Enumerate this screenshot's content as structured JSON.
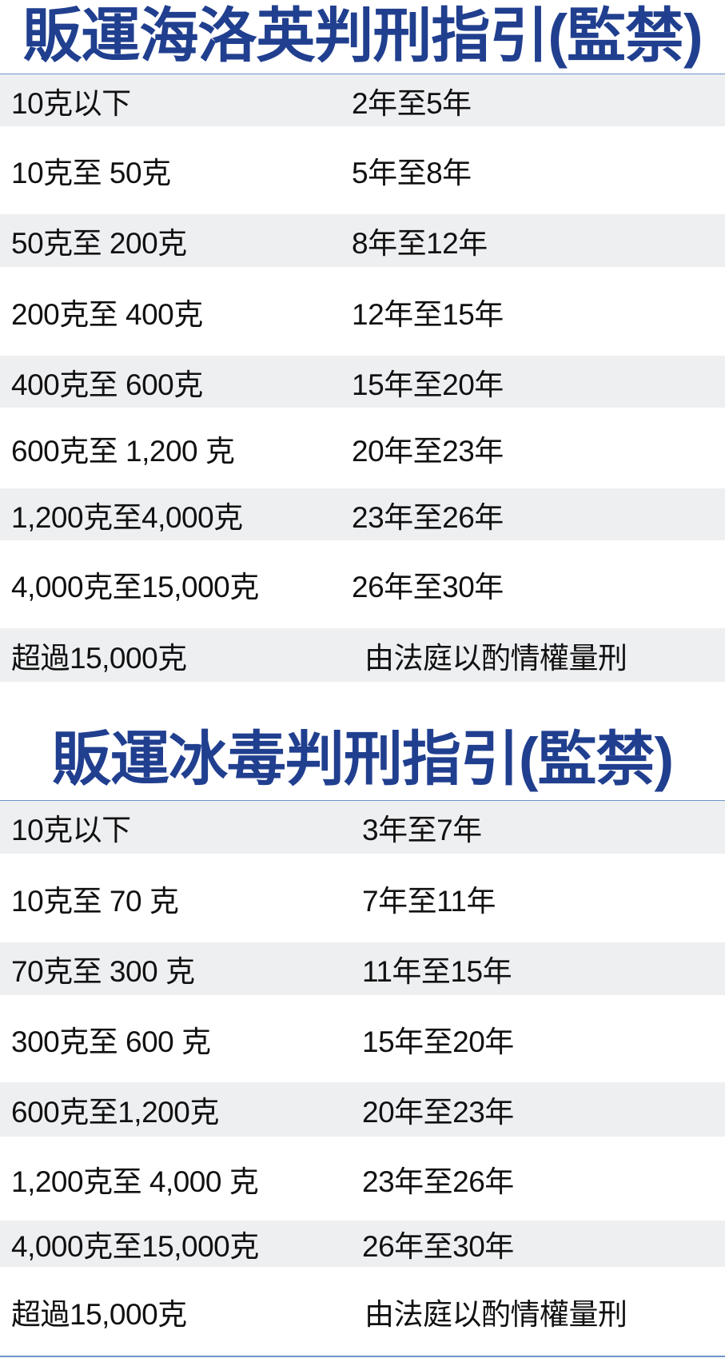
{
  "colors": {
    "title": "#213f8f",
    "rule": "#6f93c8",
    "stripe": "#eeeff1"
  },
  "tables": [
    {
      "title": "販運海洛英判刑指引(監禁)",
      "rows": [
        {
          "quantity": "10克以下",
          "sentence": "2年至5年"
        },
        {
          "quantity": "10克至 50克",
          "sentence": "5年至8年"
        },
        {
          "quantity": "50克至 200克",
          "sentence": "8年至12年"
        },
        {
          "quantity": "200克至 400克",
          "sentence": "12年至15年"
        },
        {
          "quantity": "400克至 600克",
          "sentence": "15年至20年"
        },
        {
          "quantity": "600克至 1,200 克",
          "sentence": "20年至23年"
        },
        {
          "quantity": "1,200克至4,000克",
          "sentence": "23年至26年"
        },
        {
          "quantity": "4,000克至15,000克",
          "sentence": "26年至30年"
        },
        {
          "quantity": "超過15,000克",
          "sentence": "由法庭以酌情權量刑"
        }
      ]
    },
    {
      "title": "販運冰毒判刑指引(監禁)",
      "rows": [
        {
          "quantity": "10克以下",
          "sentence": "3年至7年"
        },
        {
          "quantity": "10克至 70 克",
          "sentence": "7年至11年"
        },
        {
          "quantity": "70克至 300 克",
          "sentence": "11年至15年"
        },
        {
          "quantity": "300克至 600 克",
          "sentence": "15年至20年"
        },
        {
          "quantity": "600克至1,200克",
          "sentence": "20年至23年"
        },
        {
          "quantity": "1,200克至 4,000 克",
          "sentence": "23年至26年"
        },
        {
          "quantity": "4,000克至15,000克",
          "sentence": "26年至30年"
        },
        {
          "quantity": "超過15,000克",
          "sentence": "由法庭以酌情權量刑"
        }
      ]
    }
  ]
}
